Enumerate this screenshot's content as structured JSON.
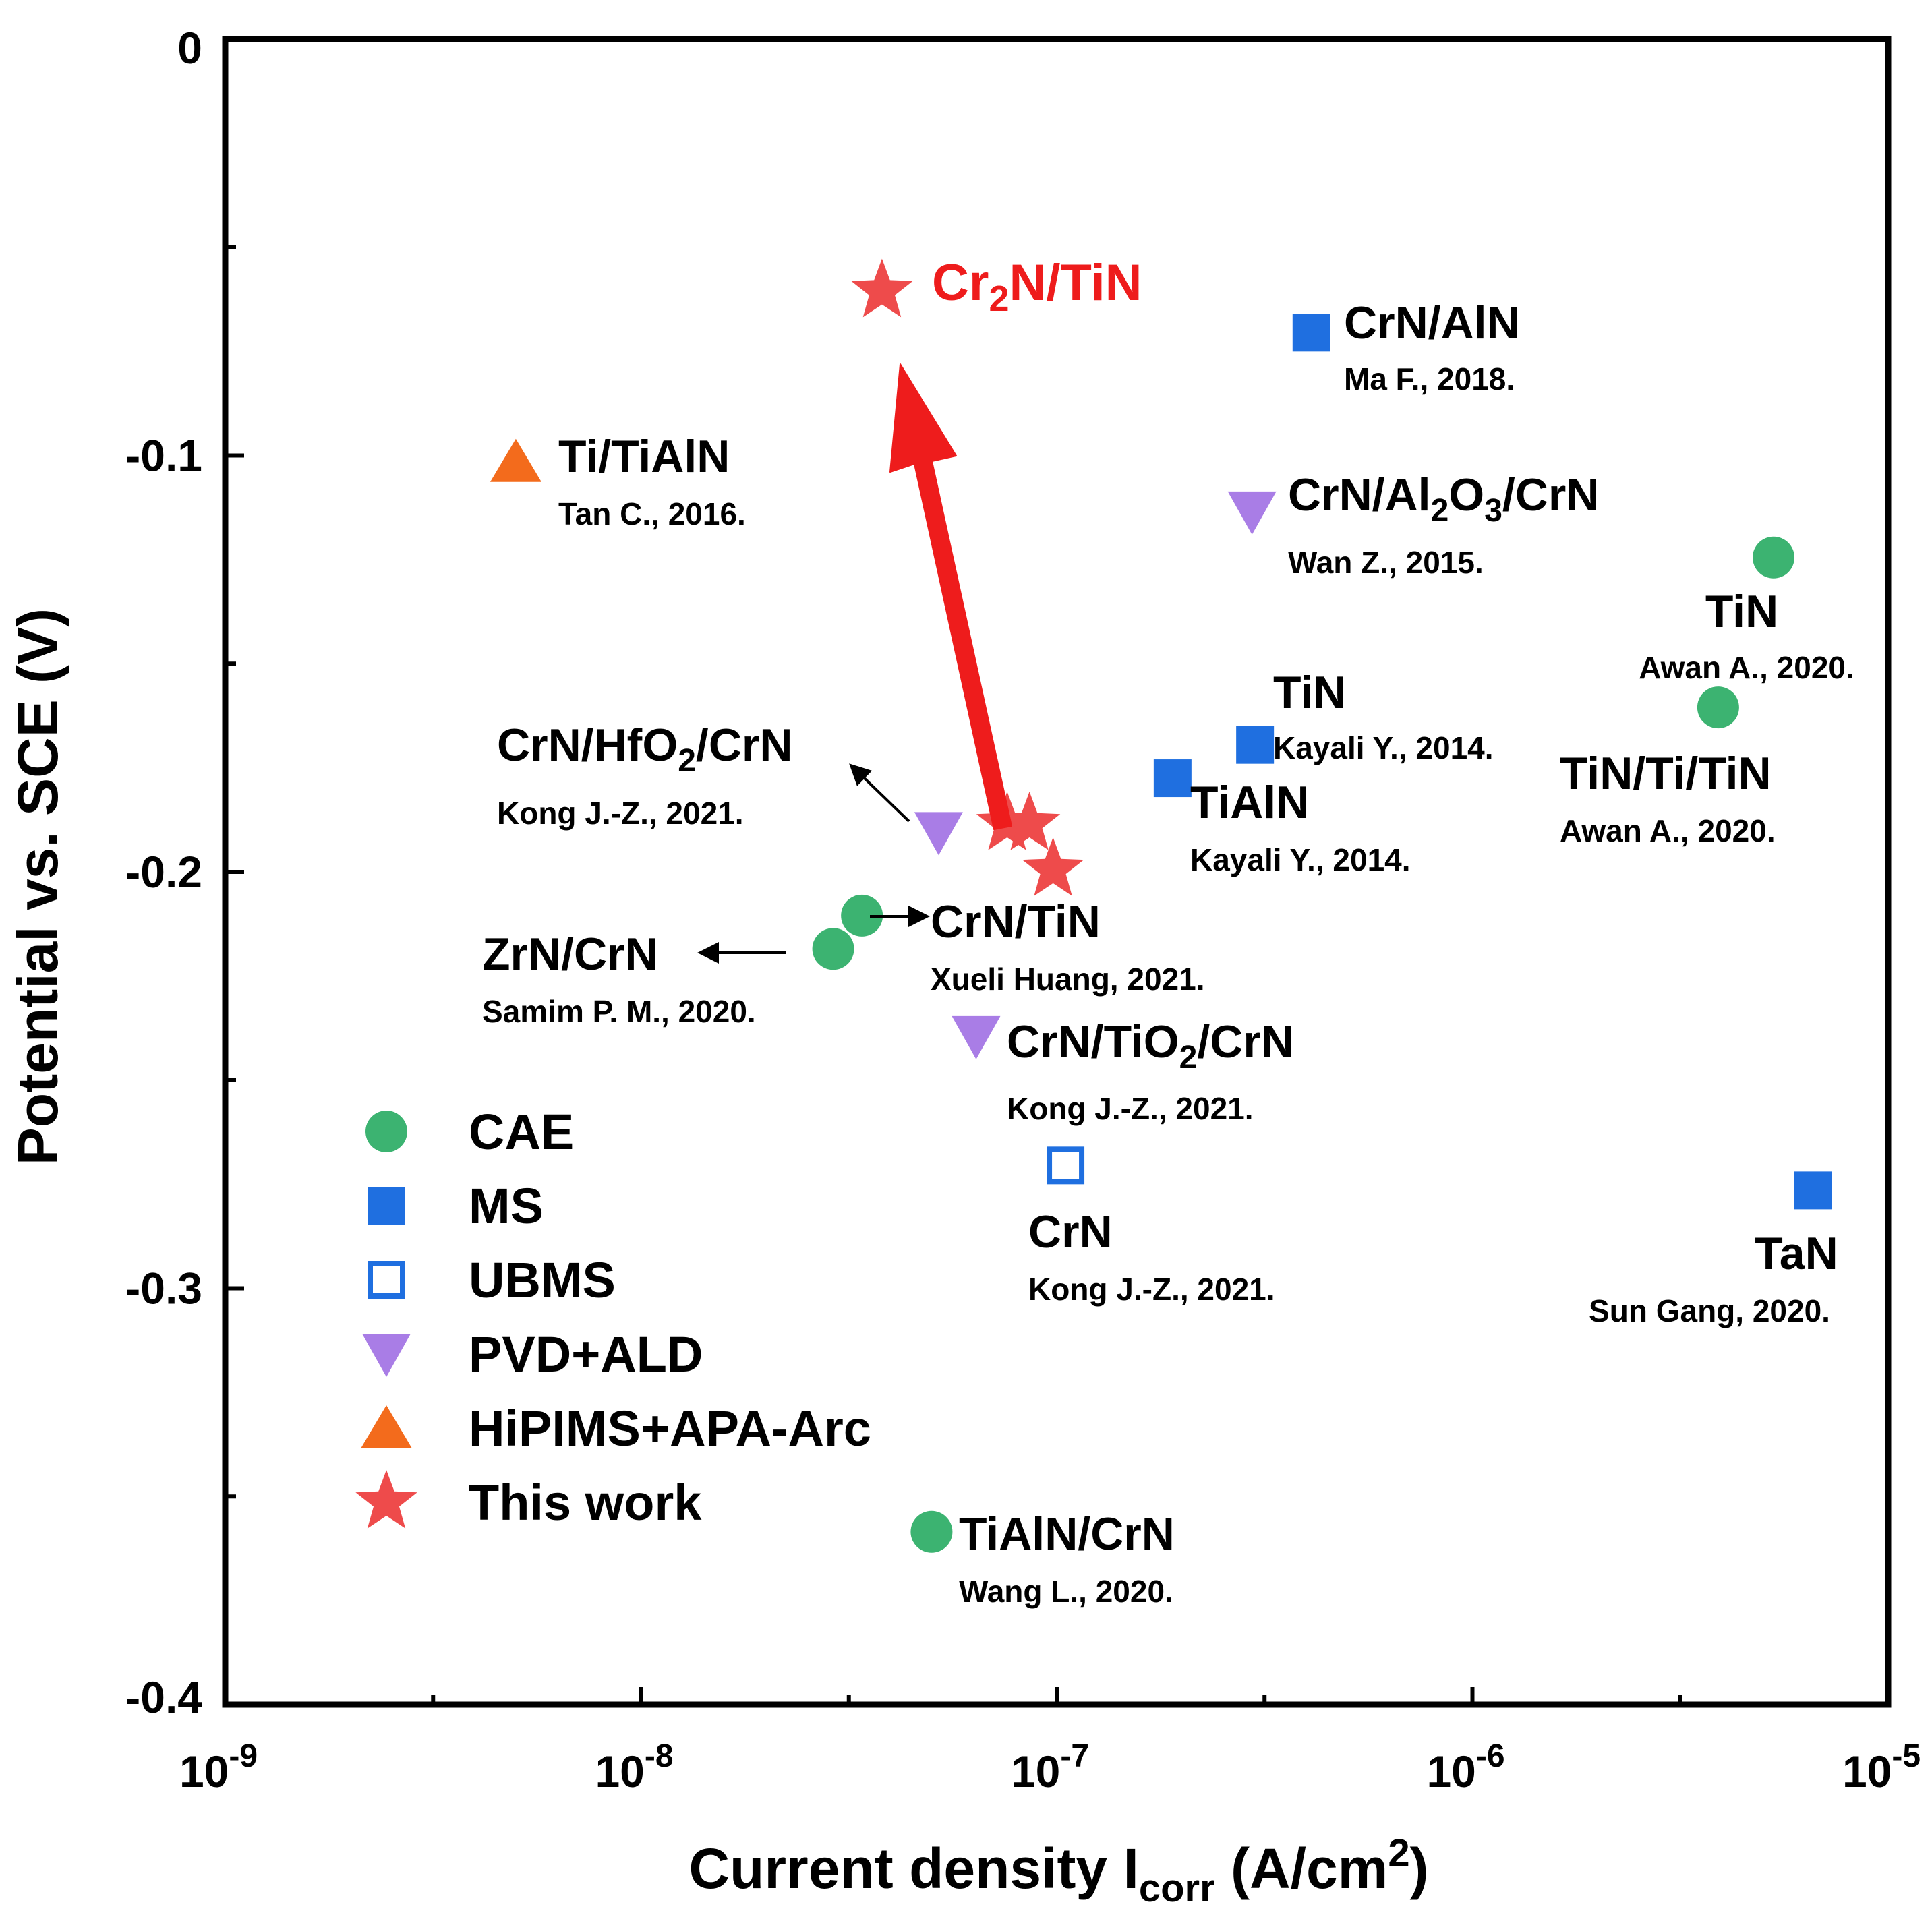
{
  "chart_data": {
    "type": "scatter",
    "title": "",
    "xlabel": {
      "main": "Current density I",
      "sub": "corr",
      "unit": " (A/cm",
      "sup": "2",
      "end": ")"
    },
    "ylabel": "Potential vs. SCE (V)",
    "xscale": "log",
    "xlim": [
      1e-09,
      1e-05
    ],
    "ylim": [
      -0.4,
      0
    ],
    "xticks": [
      {
        "value": 1e-09,
        "base": "10",
        "exp": "-9"
      },
      {
        "value": 1e-08,
        "base": "10",
        "exp": "-8"
      },
      {
        "value": 1e-07,
        "base": "10",
        "exp": "-7"
      },
      {
        "value": 1e-06,
        "base": "10",
        "exp": "-6"
      },
      {
        "value": 1e-05,
        "base": "10",
        "exp": "-5"
      }
    ],
    "yticks": [
      {
        "value": 0,
        "label": "0"
      },
      {
        "value": -0.1,
        "label": "-0.1"
      },
      {
        "value": -0.2,
        "label": "-0.2"
      },
      {
        "value": -0.3,
        "label": "-0.3"
      },
      {
        "value": -0.4,
        "label": "-0.4"
      }
    ],
    "colors": {
      "CAE": "#3cb371",
      "MS": "#1f6fe0",
      "UBMS": "#1f6fe0",
      "PVD+ALD": "#a97de6",
      "HiPIMS+APA-Arc": "#f36b1c",
      "This work": "#ee4b4b",
      "highlight": "#ee1c1c"
    },
    "series": [
      {
        "name": "CAE",
        "marker": "circle",
        "points": [
          {
            "x": 2.9e-08,
            "y": -0.2185
          },
          {
            "x": 3.4e-08,
            "y": -0.2105
          },
          {
            "x": 5e-08,
            "y": -0.3585
          },
          {
            "x": 5.3e-06,
            "y": -0.1245
          },
          {
            "x": 3.9e-06,
            "y": -0.1605
          }
        ]
      },
      {
        "name": "MS",
        "marker": "square",
        "points": [
          {
            "x": 4.1e-07,
            "y": -0.0705
          },
          {
            "x": 3e-07,
            "y": -0.1695
          },
          {
            "x": 1.9e-07,
            "y": -0.1775
          },
          {
            "x": 6.6e-06,
            "y": -0.2765
          }
        ]
      },
      {
        "name": "UBMS",
        "marker": "open-square",
        "points": [
          {
            "x": 1.05e-07,
            "y": -0.2705
          }
        ]
      },
      {
        "name": "PVD+ALD",
        "marker": "triangle-down",
        "points": [
          {
            "x": 2.95e-07,
            "y": -0.1135
          },
          {
            "x": 5.2e-08,
            "y": -0.1905
          },
          {
            "x": 6.4e-08,
            "y": -0.2395
          }
        ]
      },
      {
        "name": "HiPIMS+APA-Arc",
        "marker": "triangle-up",
        "points": [
          {
            "x": 5e-09,
            "y": -0.1015
          }
        ]
      },
      {
        "name": "This work",
        "marker": "star",
        "points": [
          {
            "x": 3.8e-08,
            "y": -0.0605
          },
          {
            "x": 7.6e-08,
            "y": -0.1885
          },
          {
            "x": 8.6e-08,
            "y": -0.1885
          },
          {
            "x": 9.8e-08,
            "y": -0.1995
          }
        ]
      }
    ],
    "annotations": [
      {
        "id": "cr2n-tin",
        "label": {
          "a": "Cr",
          "s": "2",
          "b": "N/TiN"
        },
        "ref": "",
        "color": "#ee1c1c"
      },
      {
        "id": "crn-aln",
        "label": "CrN/AlN",
        "ref": "Ma F., 2018."
      },
      {
        "id": "ti-tialn",
        "label": "Ti/TiAlN",
        "ref": "Tan C., 2016."
      },
      {
        "id": "crn-al2o3-crn",
        "label": {
          "a": "CrN/Al",
          "s": "2",
          "b": "O",
          "s2": "3",
          "c": "/CrN"
        },
        "ref": "Wan Z., 2015."
      },
      {
        "id": "tin-awan",
        "label": "TiN",
        "ref": "Awan A., 2020."
      },
      {
        "id": "tin-kayali",
        "label": "TiN",
        "ref": "Kayali Y., 2014."
      },
      {
        "id": "tin-ti-tin",
        "label": "TiN/Ti/TiN",
        "ref": "Awan A., 2020."
      },
      {
        "id": "crn-hfo2-crn",
        "label": {
          "a": "CrN/HfO",
          "s": "2",
          "b": "/CrN"
        },
        "ref": "Kong J.-Z., 2021."
      },
      {
        "id": "tialn",
        "label": "TiAlN",
        "ref": "Kayali Y., 2014."
      },
      {
        "id": "crn-tin",
        "label": "CrN/TiN",
        "ref": "Xueli Huang, 2021."
      },
      {
        "id": "zrn-crn",
        "label": "ZrN/CrN",
        "ref": "Samim P. M., 2020."
      },
      {
        "id": "crn-tio2-crn",
        "label": {
          "a": "CrN/TiO",
          "s": "2",
          "b": "/CrN"
        },
        "ref": "Kong J.-Z., 2021."
      },
      {
        "id": "crn",
        "label": "CrN",
        "ref": "Kong J.-Z., 2021."
      },
      {
        "id": "tan",
        "label": "TaN",
        "ref": "Sun Gang, 2020."
      },
      {
        "id": "tialn-crn",
        "label": "TiAlN/CrN",
        "ref": "Wang L., 2020."
      }
    ],
    "legend": {
      "position": "lower-left",
      "entries": [
        "CAE",
        "MS",
        "UBMS",
        "PVD+ALD",
        "HiPIMS+APA-Arc",
        "This work"
      ]
    }
  }
}
